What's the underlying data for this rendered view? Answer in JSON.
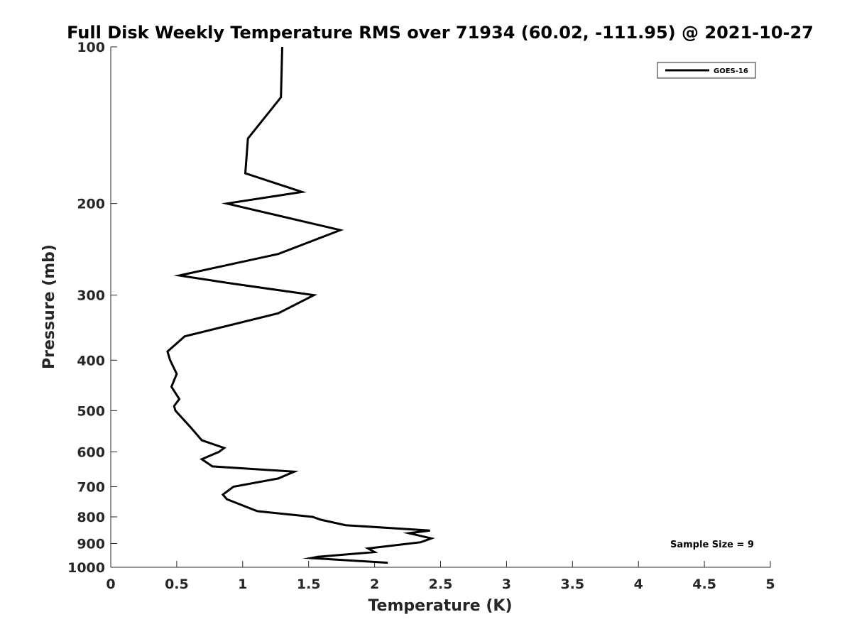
{
  "chart_data": {
    "type": "line",
    "title": "Full Disk Weekly Temperature RMS over 71934 (60.02, -111.95) @ 2021-10-27",
    "xlabel": "Temperature (K)",
    "ylabel": "Pressure (mb)",
    "xlim": [
      0,
      5
    ],
    "ylim": [
      100,
      1000
    ],
    "y_scale": "log",
    "y_reversed": true,
    "grid": false,
    "x_ticks": [
      "0",
      "0.5",
      "1",
      "1.5",
      "2",
      "2.5",
      "3",
      "3.5",
      "4",
      "4.5",
      "5"
    ],
    "y_ticks": [
      "100",
      "200",
      "300",
      "400",
      "500",
      "600",
      "700",
      "800",
      "900",
      "1000"
    ],
    "legend_position": "top-right",
    "annotation": "Sample Size = 9",
    "series": [
      {
        "name": "GOES-16",
        "color": "#000000",
        "points": [
          [
            1.3,
            100
          ],
          [
            1.29,
            125
          ],
          [
            1.04,
            150
          ],
          [
            1.02,
            175
          ],
          [
            1.45,
            190
          ],
          [
            0.88,
            200
          ],
          [
            1.74,
            225
          ],
          [
            1.27,
            250
          ],
          [
            0.52,
            275
          ],
          [
            0.92,
            285
          ],
          [
            1.54,
            300
          ],
          [
            1.27,
            325
          ],
          [
            0.56,
            360
          ],
          [
            0.43,
            385
          ],
          [
            0.45,
            400
          ],
          [
            0.5,
            425
          ],
          [
            0.46,
            450
          ],
          [
            0.52,
            475
          ],
          [
            0.48,
            490
          ],
          [
            0.49,
            500
          ],
          [
            0.61,
            540
          ],
          [
            0.69,
            570
          ],
          [
            0.86,
            590
          ],
          [
            0.82,
            600
          ],
          [
            0.69,
            620
          ],
          [
            0.77,
            640
          ],
          [
            1.39,
            655
          ],
          [
            1.27,
            675
          ],
          [
            0.93,
            700
          ],
          [
            0.85,
            725
          ],
          [
            0.88,
            740
          ],
          [
            1.11,
            780
          ],
          [
            1.53,
            800
          ],
          [
            1.59,
            810
          ],
          [
            1.78,
            830
          ],
          [
            2.42,
            850
          ],
          [
            2.26,
            860
          ],
          [
            2.43,
            880
          ],
          [
            2.35,
            895
          ],
          [
            1.95,
            920
          ],
          [
            2.0,
            935
          ],
          [
            1.57,
            955
          ],
          [
            1.52,
            960
          ],
          [
            2.1,
            980
          ]
        ]
      }
    ]
  }
}
